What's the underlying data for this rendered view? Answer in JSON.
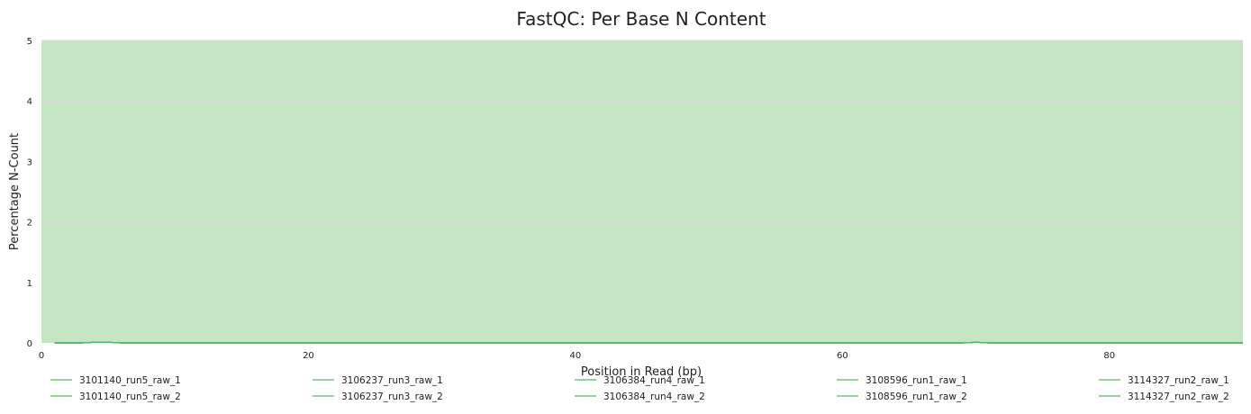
{
  "chart_data": {
    "type": "line",
    "title": "FastQC: Per Base N Content",
    "xlabel": "Position in Read (bp)",
    "ylabel": "Percentage N-Count",
    "xlim": [
      0,
      90
    ],
    "ylim": [
      0,
      5
    ],
    "x_ticks": [
      0,
      20,
      40,
      60,
      80
    ],
    "y_ticks": [
      0,
      1,
      2,
      3,
      4,
      5
    ],
    "background_band": {
      "from": 0,
      "to": 5,
      "color": "#c4e6c4"
    },
    "grid": true,
    "line_color": "#5cb85c",
    "x": [
      1,
      2,
      3,
      4,
      5,
      6,
      7,
      8,
      9,
      10,
      15,
      20,
      25,
      30,
      35,
      40,
      45,
      50,
      55,
      60,
      65,
      68,
      69,
      70,
      71,
      72,
      75,
      80,
      85,
      90
    ],
    "series": [
      {
        "name": "3101140_run5_raw_1",
        "values": [
          0,
          0,
          0,
          0.01,
          0.01,
          0,
          0,
          0,
          0,
          0,
          0,
          0,
          0,
          0,
          0,
          0,
          0,
          0,
          0,
          0,
          0,
          0,
          0,
          0.01,
          0,
          0,
          0,
          0,
          0,
          0
        ]
      },
      {
        "name": "3101140_run5_raw_2",
        "values": [
          0,
          0,
          0,
          0.01,
          0.01,
          0,
          0,
          0,
          0,
          0,
          0,
          0,
          0,
          0,
          0,
          0,
          0,
          0,
          0,
          0,
          0,
          0,
          0,
          0.01,
          0,
          0,
          0,
          0,
          0,
          0
        ]
      },
      {
        "name": "3106237_run3_raw_1",
        "values": [
          0,
          0,
          0,
          0.01,
          0.01,
          0,
          0,
          0,
          0,
          0,
          0,
          0,
          0,
          0,
          0,
          0,
          0,
          0,
          0,
          0,
          0,
          0,
          0,
          0.01,
          0,
          0,
          0,
          0,
          0,
          0
        ]
      },
      {
        "name": "3106237_run3_raw_2",
        "values": [
          0,
          0,
          0,
          0.01,
          0.01,
          0,
          0,
          0,
          0,
          0,
          0,
          0,
          0,
          0,
          0,
          0,
          0,
          0,
          0,
          0,
          0,
          0,
          0,
          0.01,
          0,
          0,
          0,
          0,
          0,
          0
        ]
      },
      {
        "name": "3106384_run4_raw_1",
        "values": [
          0,
          0,
          0,
          0.01,
          0.01,
          0,
          0,
          0,
          0,
          0,
          0,
          0,
          0,
          0,
          0,
          0,
          0,
          0,
          0,
          0,
          0,
          0,
          0,
          0.01,
          0,
          0,
          0,
          0,
          0,
          0
        ]
      },
      {
        "name": "3106384_run4_raw_2",
        "values": [
          0,
          0,
          0,
          0.01,
          0.01,
          0,
          0,
          0,
          0,
          0,
          0,
          0,
          0,
          0,
          0,
          0,
          0,
          0,
          0,
          0,
          0,
          0,
          0,
          0.01,
          0,
          0,
          0,
          0,
          0,
          0
        ]
      },
      {
        "name": "3108596_run1_raw_1",
        "values": [
          0,
          0,
          0,
          0.01,
          0.01,
          0,
          0,
          0,
          0,
          0,
          0,
          0,
          0,
          0,
          0,
          0,
          0,
          0,
          0,
          0,
          0,
          0,
          0,
          0.01,
          0,
          0,
          0,
          0,
          0,
          0
        ]
      },
      {
        "name": "3108596_run1_raw_2",
        "values": [
          0,
          0,
          0,
          0.01,
          0.01,
          0,
          0,
          0,
          0,
          0,
          0,
          0,
          0,
          0,
          0,
          0,
          0,
          0,
          0,
          0,
          0,
          0,
          0,
          0.01,
          0,
          0,
          0,
          0,
          0,
          0
        ]
      },
      {
        "name": "3114327_run2_raw_1",
        "values": [
          0,
          0,
          0,
          0.01,
          0.01,
          0,
          0,
          0,
          0,
          0,
          0,
          0,
          0,
          0,
          0,
          0,
          0,
          0,
          0,
          0,
          0,
          0,
          0,
          0.01,
          0,
          0,
          0,
          0,
          0,
          0
        ]
      },
      {
        "name": "3114327_run2_raw_2",
        "values": [
          0,
          0,
          0,
          0.01,
          0.01,
          0,
          0,
          0,
          0,
          0,
          0,
          0,
          0,
          0,
          0,
          0,
          0,
          0,
          0,
          0,
          0,
          0,
          0,
          0.01,
          0,
          0,
          0,
          0,
          0,
          0
        ]
      }
    ],
    "legend": {
      "placement": "bottom",
      "columns": 5
    }
  }
}
